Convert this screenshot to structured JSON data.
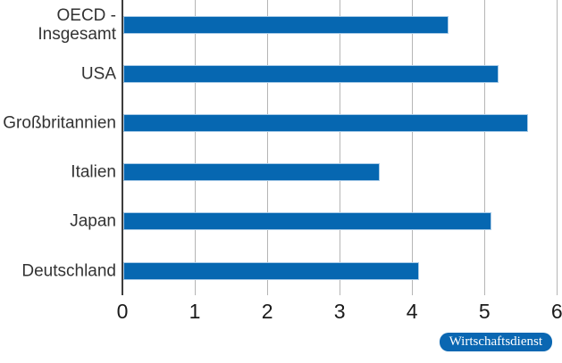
{
  "chart_data": {
    "type": "bar",
    "orientation": "horizontal",
    "title": "",
    "xlabel": "",
    "ylabel": "",
    "categories": [
      "OECD -\nInsgesamt",
      "USA",
      "Großbritannien",
      "Italien",
      "Japan",
      "Deutschland"
    ],
    "values": [
      4.5,
      5.2,
      5.6,
      3.55,
      5.1,
      4.1
    ],
    "xlim": [
      0,
      6
    ],
    "x_ticks": [
      "0",
      "1",
      "2",
      "3",
      "4",
      "5",
      "6"
    ],
    "grid": "vertical-gridlines-on",
    "legend": "none",
    "colors": {
      "bar": "#0667b1",
      "bar_outline": "#a9cbe7",
      "gridline": "#b5b5b5",
      "axis_line": "#3d3d3d",
      "tick_text": "#1a1a1a",
      "category_text": "#333333"
    }
  },
  "badge": {
    "label": "Wirtschaftsdienst",
    "background": "#0a67b2",
    "text_color": "#ffffff"
  }
}
